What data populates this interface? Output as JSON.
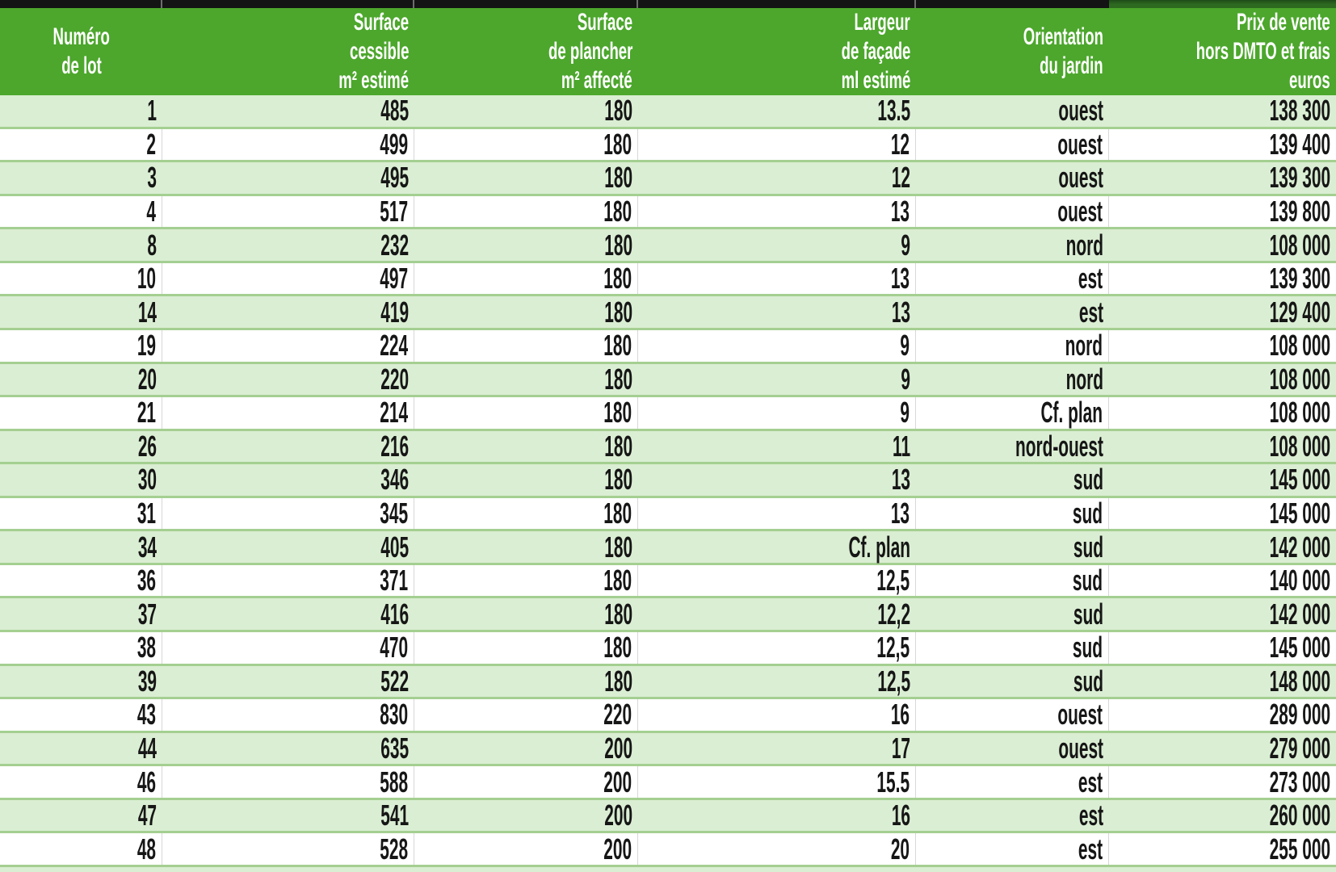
{
  "table": {
    "columns": [
      {
        "id": "lot",
        "align": "center",
        "lines": [
          "Numéro",
          "de lot"
        ]
      },
      {
        "id": "surface_cessible",
        "align": "right",
        "lines": [
          "Surface",
          "cessible",
          "m² estimé"
        ]
      },
      {
        "id": "surface_plancher",
        "align": "right",
        "lines": [
          "Surface",
          "de plancher",
          "m² affecté"
        ]
      },
      {
        "id": "largeur",
        "align": "right",
        "lines": [
          "Largeur",
          "de façade",
          "ml estimé"
        ]
      },
      {
        "id": "orientation",
        "align": "right",
        "lines": [
          "Orientation",
          "du jardin"
        ]
      },
      {
        "id": "prix",
        "align": "right",
        "lines": [
          "Prix de vente",
          "hors DMTO et frais",
          "euros"
        ]
      }
    ],
    "rows": [
      {
        "shaded": true,
        "lot": "1",
        "surface_cessible": "485",
        "surface_plancher": "180",
        "largeur": "13.5",
        "orientation": "ouest",
        "prix": "138 300"
      },
      {
        "shaded": false,
        "lot": "2",
        "surface_cessible": "499",
        "surface_plancher": "180",
        "largeur": "12",
        "orientation": "ouest",
        "prix": "139 400"
      },
      {
        "shaded": true,
        "lot": "3",
        "surface_cessible": "495",
        "surface_plancher": "180",
        "largeur": "12",
        "orientation": "ouest",
        "prix": "139 300"
      },
      {
        "shaded": false,
        "lot": "4",
        "surface_cessible": "517",
        "surface_plancher": "180",
        "largeur": "13",
        "orientation": "ouest",
        "prix": "139 800"
      },
      {
        "shaded": true,
        "lot": "8",
        "surface_cessible": "232",
        "surface_plancher": "180",
        "largeur": "9",
        "orientation": "nord",
        "prix": "108 000"
      },
      {
        "shaded": false,
        "lot": "10",
        "surface_cessible": "497",
        "surface_plancher": "180",
        "largeur": "13",
        "orientation": "est",
        "prix": "139 300"
      },
      {
        "shaded": true,
        "lot": "14",
        "surface_cessible": "419",
        "surface_plancher": "180",
        "largeur": "13",
        "orientation": "est",
        "prix": "129 400"
      },
      {
        "shaded": false,
        "lot": "19",
        "surface_cessible": "224",
        "surface_plancher": "180",
        "largeur": "9",
        "orientation": "nord",
        "prix": "108 000"
      },
      {
        "shaded": true,
        "lot": "20",
        "surface_cessible": "220",
        "surface_plancher": "180",
        "largeur": "9",
        "orientation": "nord",
        "prix": "108 000"
      },
      {
        "shaded": false,
        "lot": "21",
        "surface_cessible": "214",
        "surface_plancher": "180",
        "largeur": "9",
        "orientation": "Cf. plan",
        "prix": "108 000"
      },
      {
        "shaded": true,
        "lot": "26",
        "surface_cessible": "216",
        "surface_plancher": "180",
        "largeur": "11",
        "orientation": "nord-ouest",
        "prix": "108 000"
      },
      {
        "shaded": true,
        "lot": "30",
        "surface_cessible": "346",
        "surface_plancher": "180",
        "largeur": "13",
        "orientation": "sud",
        "prix": "145 000"
      },
      {
        "shaded": false,
        "lot": "31",
        "surface_cessible": "345",
        "surface_plancher": "180",
        "largeur": "13",
        "orientation": "sud",
        "prix": "145 000"
      },
      {
        "shaded": true,
        "lot": "34",
        "surface_cessible": "405",
        "surface_plancher": "180",
        "largeur": "Cf. plan",
        "orientation": "sud",
        "prix": "142 000"
      },
      {
        "shaded": false,
        "lot": "36",
        "surface_cessible": "371",
        "surface_plancher": "180",
        "largeur": "12,5",
        "orientation": "sud",
        "prix": "140 000"
      },
      {
        "shaded": true,
        "lot": "37",
        "surface_cessible": "416",
        "surface_plancher": "180",
        "largeur": "12,2",
        "orientation": "sud",
        "prix": "142 000"
      },
      {
        "shaded": false,
        "lot": "38",
        "surface_cessible": "470",
        "surface_plancher": "180",
        "largeur": "12,5",
        "orientation": "sud",
        "prix": "145 000"
      },
      {
        "shaded": true,
        "lot": "39",
        "surface_cessible": "522",
        "surface_plancher": "180",
        "largeur": "12,5",
        "orientation": "sud",
        "prix": "148 000"
      },
      {
        "shaded": false,
        "lot": "43",
        "surface_cessible": "830",
        "surface_plancher": "220",
        "largeur": "16",
        "orientation": "ouest",
        "prix": "289 000"
      },
      {
        "shaded": true,
        "lot": "44",
        "surface_cessible": "635",
        "surface_plancher": "200",
        "largeur": "17",
        "orientation": "ouest",
        "prix": "279 000"
      },
      {
        "shaded": false,
        "lot": "46",
        "surface_cessible": "588",
        "surface_plancher": "200",
        "largeur": "15.5",
        "orientation": "est",
        "prix": "273 000"
      },
      {
        "shaded": true,
        "lot": "47",
        "surface_cessible": "541",
        "surface_plancher": "200",
        "largeur": "16",
        "orientation": "est",
        "prix": "260 000"
      },
      {
        "shaded": false,
        "lot": "48",
        "surface_cessible": "528",
        "surface_plancher": "200",
        "largeur": "20",
        "orientation": "est",
        "prix": "255 000"
      }
    ]
  },
  "colors": {
    "header_green": "#4ca72c",
    "row_green": "#daeed3",
    "row_white": "#ffffff",
    "row_border_green": "#a4cf91",
    "grid_gray": "#d8d8d8",
    "top_bar_black": "#141414",
    "top_bar_dark_green": "#2d6a20",
    "header_text": "#ffffff",
    "body_text": "#161616"
  }
}
